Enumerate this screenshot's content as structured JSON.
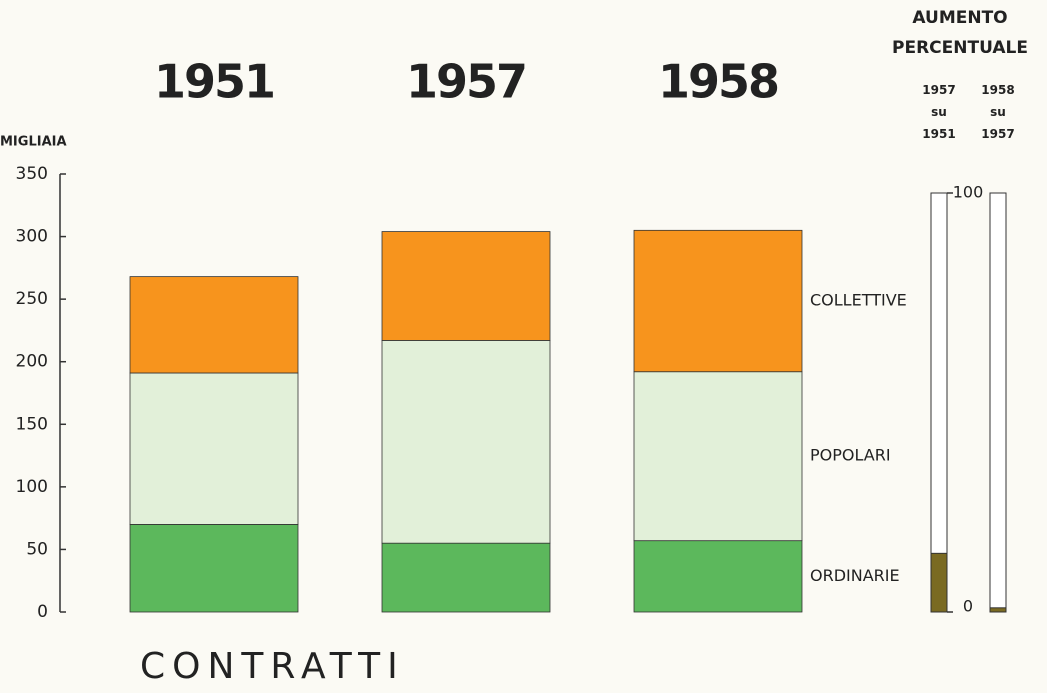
{
  "chart_data": [
    {
      "type": "bar",
      "stacked": true,
      "title": "CONTRATTI",
      "y_label": "MIGLIAIA",
      "categories": [
        "1951",
        "1957",
        "1958"
      ],
      "series": [
        {
          "name": "ORDINARIE",
          "color": "#5cb85c",
          "values": [
            70,
            55,
            57
          ]
        },
        {
          "name": "POPOLARI",
          "color": "#e2f0d9",
          "values": [
            121,
            162,
            135
          ]
        },
        {
          "name": "COLLETTIVE",
          "color": "#f7941d",
          "values": [
            77,
            87,
            113
          ]
        }
      ],
      "ylim": [
        0,
        350
      ],
      "yticks": [
        0,
        50,
        100,
        150,
        200,
        250,
        300,
        350
      ]
    },
    {
      "type": "bar",
      "title": "AUMENTO PERCENTUALE",
      "categories": [
        "1957 su 1951",
        "1958 su 1957"
      ],
      "values": [
        14,
        1
      ],
      "color": "#7a6a22",
      "ylim": [
        0,
        100
      ],
      "yticks": [
        0,
        100
      ]
    }
  ]
}
